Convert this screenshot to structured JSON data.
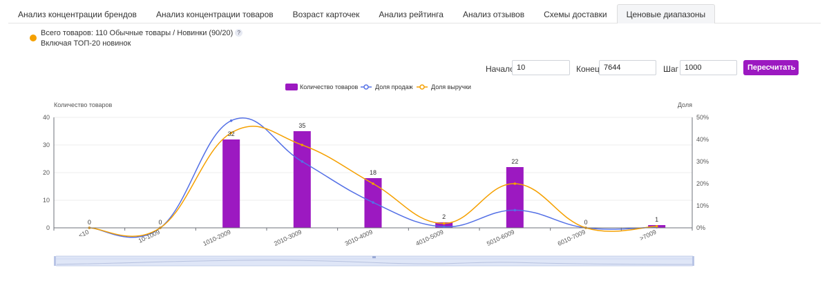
{
  "tabs": [
    {
      "label": "Анализ концентрации брендов",
      "active": false
    },
    {
      "label": "Анализ концентрации товаров",
      "active": false
    },
    {
      "label": "Возраст карточек",
      "active": false
    },
    {
      "label": "Анализ рейтинга",
      "active": false
    },
    {
      "label": "Анализ отзывов",
      "active": false
    },
    {
      "label": "Схемы доставки",
      "active": false
    },
    {
      "label": "Ценовые диапазоны",
      "active": true
    }
  ],
  "info": {
    "total": "Всего товаров: 110 Обычные товары / Новинки (90/20)",
    "help": "?",
    "top20": "Включая ТОП-20 новинок"
  },
  "form": {
    "start_label": "Начало",
    "start_value": "10",
    "end_label": "Конец",
    "end_value": "7644",
    "step_label": "Шаг",
    "step_value": "1000",
    "recalc_label": "Пересчитать"
  },
  "colors": {
    "bar": "#9c19c1",
    "sales_line": "#5470e6",
    "revenue_line": "#f5a000",
    "accent": "#9c19c1"
  },
  "chart_data": {
    "type": "bar",
    "categories": [
      "<10",
      "10-1009",
      "1010-2009",
      "2010-3009",
      "3010-4009",
      "4010-5009",
      "5010-6009",
      "6010-7009",
      ">7009"
    ],
    "series": [
      {
        "name": "Количество товаров",
        "type": "bar",
        "axis": "left",
        "values": [
          0,
          0,
          32,
          35,
          18,
          2,
          22,
          0,
          1
        ]
      },
      {
        "name": "Доля продаж",
        "type": "line",
        "axis": "right",
        "values": [
          0,
          0,
          48.5,
          30,
          11.5,
          0.5,
          8,
          0,
          0.3
        ]
      },
      {
        "name": "Доля выручки",
        "type": "line",
        "axis": "right",
        "values": [
          0,
          0,
          43,
          37.5,
          20,
          2,
          20,
          0,
          0.7
        ]
      }
    ],
    "ylabel": "Количество товаров",
    "y2label": "Доля",
    "ylim": [
      0,
      40
    ],
    "yticks": [
      "0",
      "10",
      "20",
      "30",
      "40"
    ],
    "y2lim": [
      0,
      50
    ],
    "y2ticks": [
      "0%",
      "10%",
      "20%",
      "30%",
      "40%",
      "50%"
    ],
    "legend": "top-center",
    "grid": true
  }
}
